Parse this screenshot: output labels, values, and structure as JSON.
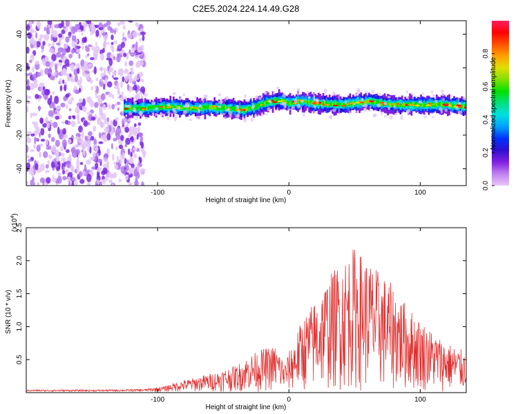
{
  "title": "C2E5.2024.224.14.49.G28",
  "chart_data": [
    {
      "type": "heatmap",
      "xlabel": "Height of straight line (km)",
      "ylabel": "Frequency (Hz)",
      "xlim": [
        -200,
        135
      ],
      "ylim": [
        -50,
        48
      ],
      "xticks": [
        -100,
        0,
        100
      ],
      "xtick_labels": [
        "-100",
        "0",
        "100"
      ],
      "yticks": [
        -40,
        -20,
        0,
        20,
        40
      ],
      "ytick_labels": [
        "-40",
        "-20",
        "0",
        "20",
        "40"
      ],
      "grid": false,
      "colorbar": {
        "label": "Normalized spectral amplitude",
        "range": [
          0,
          1
        ],
        "ticks": [
          0.0,
          0.2,
          0.4,
          0.6,
          0.8
        ],
        "tick_labels": [
          "0.0",
          "0.2",
          "0.4",
          "0.6",
          "0.8"
        ],
        "colormap": [
          "#e8c8f8",
          "#c080f0",
          "#8020e0",
          "#3010d0",
          "#0030ff",
          "#00a0ff",
          "#00e0e0",
          "#00e080",
          "#00e000",
          "#80e000",
          "#e0e000",
          "#ffa000",
          "#ff5000",
          "#ff0000",
          "#ff2060"
        ]
      },
      "noise_region_x": [
        -200,
        -110
      ],
      "signal_ridge": {
        "x": [
          -125,
          -110,
          -90,
          -75,
          -60,
          -45,
          -35,
          -25,
          -15,
          -5,
          0,
          10,
          20,
          40,
          60,
          80,
          100,
          120,
          135
        ],
        "y": [
          -4,
          -4,
          -3,
          -4,
          -3.5,
          -4,
          -5,
          -3,
          0,
          0.5,
          -1,
          0,
          -1,
          -2,
          0,
          -2,
          -2,
          -2,
          -3
        ]
      }
    },
    {
      "type": "line",
      "xlabel": "Height of straight line (km)",
      "ylabel": "SNR (10 * v/v)",
      "y_multiplier": "(x10",
      "y_multiplier_exp": "4",
      "y_multiplier_close": ")",
      "xlim": [
        -200,
        135
      ],
      "ylim": [
        0,
        2.5
      ],
      "xticks": [
        -100,
        0,
        100
      ],
      "xtick_labels": [
        "-100",
        "0",
        "100"
      ],
      "yticks": [
        0.5,
        1.0,
        1.5,
        2.0,
        2.5
      ],
      "ytick_labels": [
        "0.5",
        "1.0",
        "1.5",
        "2.0",
        "2.5"
      ],
      "grid": false,
      "series_color": "#e03030",
      "envelope": {
        "x": [
          -200,
          -140,
          -110,
          -95,
          -85,
          -70,
          -55,
          -40,
          -30,
          -20,
          -10,
          -3,
          5,
          10,
          20,
          30,
          40,
          50,
          60,
          70,
          80,
          90,
          100,
          110,
          120,
          135
        ],
        "y": [
          0.03,
          0.03,
          0.04,
          0.08,
          0.15,
          0.22,
          0.3,
          0.4,
          0.55,
          0.65,
          0.7,
          0.45,
          0.85,
          1.1,
          1.4,
          1.75,
          2.0,
          2.2,
          2.0,
          1.8,
          1.6,
          1.3,
          1.1,
          0.9,
          0.75,
          0.6
        ]
      }
    }
  ]
}
